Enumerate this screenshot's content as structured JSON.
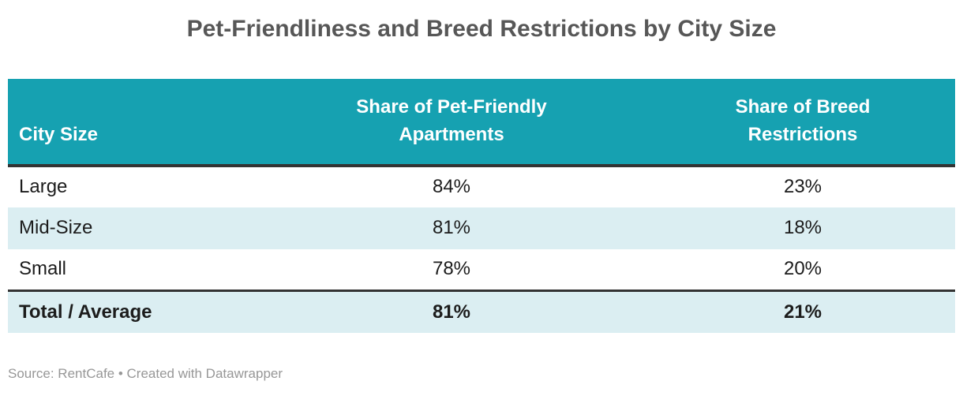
{
  "title": "Pet-Friendliness and Breed Restrictions by City Size",
  "table": {
    "header": [
      "City Size",
      "Share of Pet-Friendly Apartments",
      "Share of Breed Restrictions"
    ],
    "rows": [
      [
        "Large",
        "84%",
        "23%"
      ],
      [
        "Mid-Size",
        "81%",
        "18%"
      ],
      [
        "Small",
        "78%",
        "20%"
      ]
    ],
    "total": [
      "Total / Average",
      "81%",
      "21%"
    ]
  },
  "footer": "Source: RentCafe • Created with Datawrapper",
  "colors": {
    "header_teal": "#16a1b1",
    "stripe": "#dbeef2",
    "dark_border": "#333333",
    "title_gray": "#575757",
    "footer_gray": "#979797"
  },
  "chart_data": {
    "type": "table",
    "title": "Pet-Friendliness and Breed Restrictions by City Size",
    "columns": [
      "City Size",
      "Share of Pet-Friendly Apartments",
      "Share of Breed Restrictions"
    ],
    "rows": [
      [
        "Large",
        84,
        23
      ],
      [
        "Mid-Size",
        81,
        18
      ],
      [
        "Small",
        78,
        20
      ],
      [
        "Total / Average",
        81,
        21
      ]
    ],
    "units": "percent",
    "notes": "Total / Average row is bold on a striped background; values are shares in %",
    "source": "Source: RentCafe • Created with Datawrapper"
  }
}
